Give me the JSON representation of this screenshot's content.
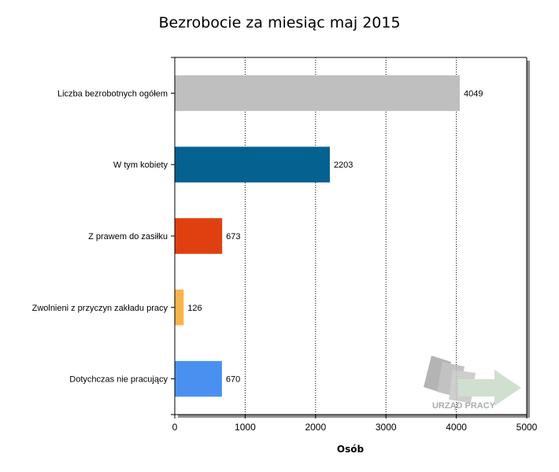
{
  "chart_data": {
    "type": "bar",
    "orientation": "horizontal",
    "title": "Bezrobocie za miesiąc maj 2015",
    "xlabel": "Osób",
    "ylabel": "",
    "xlim": [
      0,
      5000
    ],
    "xticks": [
      0,
      1000,
      2000,
      3000,
      4000,
      5000
    ],
    "grid": true,
    "categories": [
      "Liczba bezrobotnych ogółem",
      "W tym kobiety",
      "Z prawem do zasiłku",
      "Zwolnieni z przyczyn zakładu pracy",
      "Dotychczas nie pracujący"
    ],
    "values": [
      4049,
      2203,
      673,
      126,
      670
    ],
    "colors": [
      "#bfbfbf",
      "#056190",
      "#e04010",
      "#f9b44b",
      "#4a90f0"
    ]
  },
  "watermark": {
    "text": "URZĄD PRACY"
  }
}
